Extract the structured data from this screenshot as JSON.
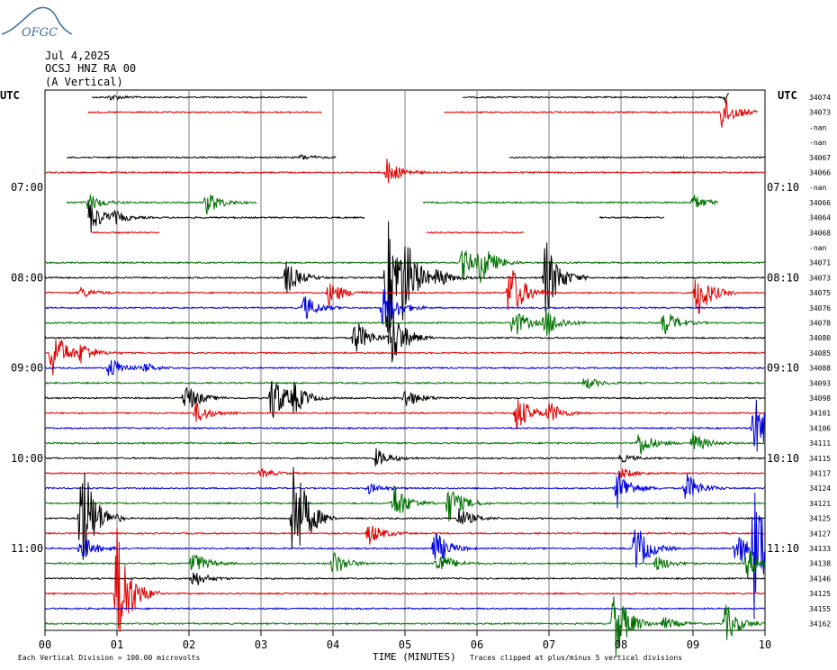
{
  "logo_text": "OFGC",
  "header": {
    "date": "Jul 4,2025",
    "station": "OCSJ HNZ RA 00",
    "component": "(A Vertical)"
  },
  "left_axis_label": "UTC",
  "right_axis_label": "UTC",
  "left_time_labels": [
    {
      "row": 6,
      "label": "07:00"
    },
    {
      "row": 12,
      "label": "08:00"
    },
    {
      "row": 18,
      "label": "09:00"
    },
    {
      "row": 24,
      "label": "10:00"
    },
    {
      "row": 30,
      "label": "11:00"
    }
  ],
  "right_time_labels": [
    {
      "row": 6,
      "label": "07:10"
    },
    {
      "row": 12,
      "label": "08:10"
    },
    {
      "row": 18,
      "label": "09:10"
    },
    {
      "row": 24,
      "label": "10:10"
    },
    {
      "row": 30,
      "label": "11:10"
    }
  ],
  "x_ticks": [
    "00",
    "01",
    "02",
    "03",
    "04",
    "05",
    "06",
    "07",
    "08",
    "09",
    "10"
  ],
  "x_title": "TIME (MINUTES)",
  "footer_left": "Each Vertical Division =  100.00 microvolts",
  "footer_right": "Traces clipped at plus/minus 5 vertical divisions",
  "colors": {
    "trace_1": "#000000",
    "trace_2": "#e00000",
    "trace_3": "#0000e0",
    "trace_4": "#007000",
    "grid": "#808080",
    "logo": "#3a6e9e"
  },
  "chart_data": {
    "type": "line",
    "title": "OCSJ HNZ RA 00",
    "xlabel": "TIME (MINUTES)",
    "xlim": [
      0,
      10
    ],
    "row_minutes": 10,
    "rows": [
      {
        "idx": 0,
        "color": "black",
        "label": "34074",
        "segments": [
          [
            0.65,
            3.65
          ],
          [
            5.8,
            9.5
          ]
        ],
        "events": [
          [
            0.9,
            0.2
          ],
          [
            9.45,
            0.35
          ]
        ]
      },
      {
        "idx": 1,
        "color": "red",
        "label": "34073",
        "segments": [
          [
            0.6,
            3.85
          ],
          [
            5.55,
            9.9
          ]
        ],
        "events": [
          [
            9.4,
            1.4
          ]
        ]
      },
      {
        "idx": 2,
        "color": "blue",
        "label": "-nan",
        "segments": [],
        "events": []
      },
      {
        "idx": 3,
        "color": "green",
        "label": "-nan",
        "segments": [],
        "events": []
      },
      {
        "idx": 4,
        "color": "black",
        "label": "34067",
        "segments": [
          [
            0.3,
            4.05
          ],
          [
            6.45,
            10
          ]
        ],
        "events": [
          [
            3.55,
            0.2
          ]
        ]
      },
      {
        "idx": 5,
        "color": "red",
        "label": "34066",
        "segments": [
          [
            0,
            10
          ]
        ],
        "events": [
          [
            4.75,
            1.0
          ]
        ]
      },
      {
        "idx": 6,
        "color": "blue",
        "label": "-nan",
        "segments": [],
        "events": []
      },
      {
        "idx": 7,
        "color": "green",
        "label": "34066",
        "segments": [
          [
            0.3,
            2.95
          ],
          [
            5.25,
            9.35
          ]
        ],
        "events": [
          [
            0.6,
            0.7
          ],
          [
            2.25,
            0.9
          ],
          [
            9.0,
            0.6
          ]
        ]
      },
      {
        "idx": 8,
        "color": "black",
        "label": "34064",
        "segments": [
          [
            0.6,
            4.45
          ],
          [
            7.7,
            8.6
          ]
        ],
        "events": [
          [
            0.6,
            1.4
          ],
          [
            0.95,
            0.4
          ]
        ]
      },
      {
        "idx": 9,
        "color": "red",
        "label": "34068",
        "segments": [
          [
            0.65,
            1.6
          ],
          [
            5.3,
            6.65
          ]
        ],
        "events": []
      },
      {
        "idx": 10,
        "color": "blue",
        "label": "-nan",
        "segments": [],
        "events": []
      },
      {
        "idx": 11,
        "color": "green",
        "label": "34071",
        "segments": [
          [
            0,
            10
          ]
        ],
        "events": [
          [
            5.8,
            1.2
          ],
          [
            6.05,
            1.4
          ]
        ]
      },
      {
        "idx": 12,
        "color": "black",
        "label": "34073",
        "segments": [
          [
            0,
            10
          ]
        ],
        "events": [
          [
            3.35,
            1.3
          ],
          [
            4.75,
            5.0
          ],
          [
            4.98,
            2.5
          ],
          [
            5.45,
            0.7
          ],
          [
            6.95,
            3.0
          ]
        ]
      },
      {
        "idx": 13,
        "color": "red",
        "label": "34075",
        "segments": [
          [
            0,
            10
          ]
        ],
        "events": [
          [
            0.5,
            0.4
          ],
          [
            3.95,
            1.0
          ],
          [
            6.45,
            2.5
          ],
          [
            9.05,
            2.0
          ]
        ]
      },
      {
        "idx": 14,
        "color": "blue",
        "label": "34076",
        "segments": [
          [
            0,
            10
          ]
        ],
        "events": [
          [
            3.6,
            1.0
          ],
          [
            4.7,
            1.8
          ]
        ]
      },
      {
        "idx": 15,
        "color": "green",
        "label": "34078",
        "segments": [
          [
            0,
            10
          ]
        ],
        "events": [
          [
            6.5,
            1.2
          ],
          [
            6.95,
            1.2
          ],
          [
            8.6,
            1.0
          ]
        ]
      },
      {
        "idx": 16,
        "color": "black",
        "label": "34080",
        "segments": [
          [
            0,
            10
          ]
        ],
        "events": [
          [
            4.3,
            1.5
          ],
          [
            4.8,
            2.5
          ]
        ]
      },
      {
        "idx": 17,
        "color": "red",
        "label": "34085",
        "segments": [
          [
            0,
            10
          ]
        ],
        "events": [
          [
            0.1,
            2.0
          ],
          [
            0.5,
            0.7
          ]
        ]
      },
      {
        "idx": 18,
        "color": "blue",
        "label": "34088",
        "segments": [
          [
            0,
            10
          ]
        ],
        "events": [
          [
            0.9,
            0.9
          ],
          [
            1.4,
            0.3
          ]
        ]
      },
      {
        "idx": 19,
        "color": "green",
        "label": "34093",
        "segments": [
          [
            0,
            10
          ]
        ],
        "events": [
          [
            7.5,
            0.5
          ]
        ]
      },
      {
        "idx": 20,
        "color": "black",
        "label": "34098",
        "segments": [
          [
            0,
            10
          ]
        ],
        "events": [
          [
            1.95,
            1.2
          ],
          [
            3.15,
            2.0
          ],
          [
            3.45,
            1.0
          ],
          [
            5.0,
            0.8
          ]
        ]
      },
      {
        "idx": 21,
        "color": "red",
        "label": "34101",
        "segments": [
          [
            0,
            10
          ]
        ],
        "events": [
          [
            2.1,
            0.8
          ],
          [
            6.55,
            1.5
          ],
          [
            7.0,
            0.8
          ]
        ]
      },
      {
        "idx": 22,
        "color": "blue",
        "label": "34106",
        "segments": [
          [
            0,
            10
          ]
        ],
        "events": [
          [
            9.85,
            2.5
          ]
        ]
      },
      {
        "idx": 23,
        "color": "green",
        "label": "34111",
        "segments": [
          [
            0,
            10
          ]
        ],
        "events": [
          [
            8.25,
            1.0
          ],
          [
            9.0,
            0.8
          ]
        ]
      },
      {
        "idx": 24,
        "color": "black",
        "label": "34115",
        "segments": [
          [
            0,
            10
          ]
        ],
        "events": [
          [
            4.6,
            0.7
          ],
          [
            8.0,
            0.3
          ]
        ]
      },
      {
        "idx": 25,
        "color": "red",
        "label": "34117",
        "segments": [
          [
            0,
            10
          ]
        ],
        "events": [
          [
            3.0,
            0.3
          ],
          [
            8.0,
            0.4
          ]
        ]
      },
      {
        "idx": 26,
        "color": "blue",
        "label": "34124",
        "segments": [
          [
            0,
            10
          ]
        ],
        "events": [
          [
            4.5,
            0.4
          ],
          [
            7.95,
            1.5
          ],
          [
            8.9,
            1.2
          ]
        ]
      },
      {
        "idx": 27,
        "color": "green",
        "label": "34121",
        "segments": [
          [
            0,
            10
          ]
        ],
        "events": [
          [
            4.85,
            1.5
          ],
          [
            5.6,
            1.5
          ]
        ]
      },
      {
        "idx": 28,
        "color": "black",
        "label": "34125",
        "segments": [
          [
            0,
            10
          ]
        ],
        "events": [
          [
            0.5,
            5.0
          ],
          [
            3.45,
            5.0
          ],
          [
            5.75,
            0.8
          ]
        ]
      },
      {
        "idx": 29,
        "color": "red",
        "label": "34127",
        "segments": [
          [
            0,
            10
          ]
        ],
        "events": [
          [
            4.5,
            0.9
          ]
        ]
      },
      {
        "idx": 30,
        "color": "blue",
        "label": "34133",
        "segments": [
          [
            0,
            10
          ]
        ],
        "events": [
          [
            0.5,
            1.0
          ],
          [
            5.4,
            1.5
          ],
          [
            8.2,
            2.0
          ],
          [
            9.6,
            1.5
          ],
          [
            9.85,
            5.0
          ]
        ]
      },
      {
        "idx": 31,
        "color": "green",
        "label": "34138",
        "segments": [
          [
            0,
            10
          ]
        ],
        "events": [
          [
            2.05,
            1.0
          ],
          [
            4.0,
            1.0
          ],
          [
            5.45,
            1.0
          ],
          [
            8.5,
            0.6
          ],
          [
            9.75,
            1.2
          ]
        ]
      },
      {
        "idx": 32,
        "color": "black",
        "label": "34146",
        "segments": [
          [
            0,
            10
          ]
        ],
        "events": [
          [
            2.05,
            0.7
          ]
        ]
      },
      {
        "idx": 33,
        "color": "red",
        "label": "34125",
        "segments": [
          [
            0,
            10
          ]
        ],
        "events": [
          [
            1.0,
            5.0
          ]
        ]
      },
      {
        "idx": 34,
        "color": "blue",
        "label": "34155",
        "segments": [
          [
            0,
            10
          ]
        ],
        "events": []
      },
      {
        "idx": 35,
        "color": "green",
        "label": "34162",
        "segments": [
          [
            0,
            10
          ]
        ],
        "events": [
          [
            7.9,
            3.0
          ],
          [
            8.6,
            0.5
          ],
          [
            9.45,
            1.5
          ]
        ]
      }
    ]
  }
}
